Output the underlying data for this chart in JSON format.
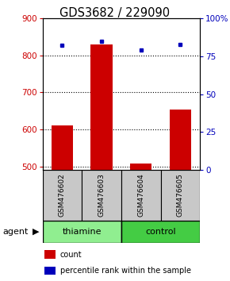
{
  "title": "GDS3682 / 229090",
  "samples": [
    "GSM476602",
    "GSM476603",
    "GSM476604",
    "GSM476605"
  ],
  "count_values": [
    610,
    830,
    507,
    653
  ],
  "percentile_values": [
    82,
    85,
    79,
    83
  ],
  "ylim_left": [
    490,
    900
  ],
  "ylim_right": [
    0,
    100
  ],
  "yticks_left": [
    500,
    600,
    700,
    800,
    900
  ],
  "yticks_right": [
    0,
    25,
    50,
    75,
    100
  ],
  "ytick_right_labels": [
    "0",
    "25",
    "50",
    "75",
    "100%"
  ],
  "bar_color": "#CC0000",
  "dot_color": "#0000BB",
  "sample_bg": "#C8C8C8",
  "agent_bg_thiamine": "#90EE90",
  "agent_bg_control": "#44CC44",
  "left_tick_color": "#CC0000",
  "right_tick_color": "#0000BB",
  "bar_width": 0.55,
  "thiamine_label": "thiamine",
  "control_label": "control",
  "agent_label": "agent",
  "legend_count": "count",
  "legend_pct": "percentile rank within the sample"
}
